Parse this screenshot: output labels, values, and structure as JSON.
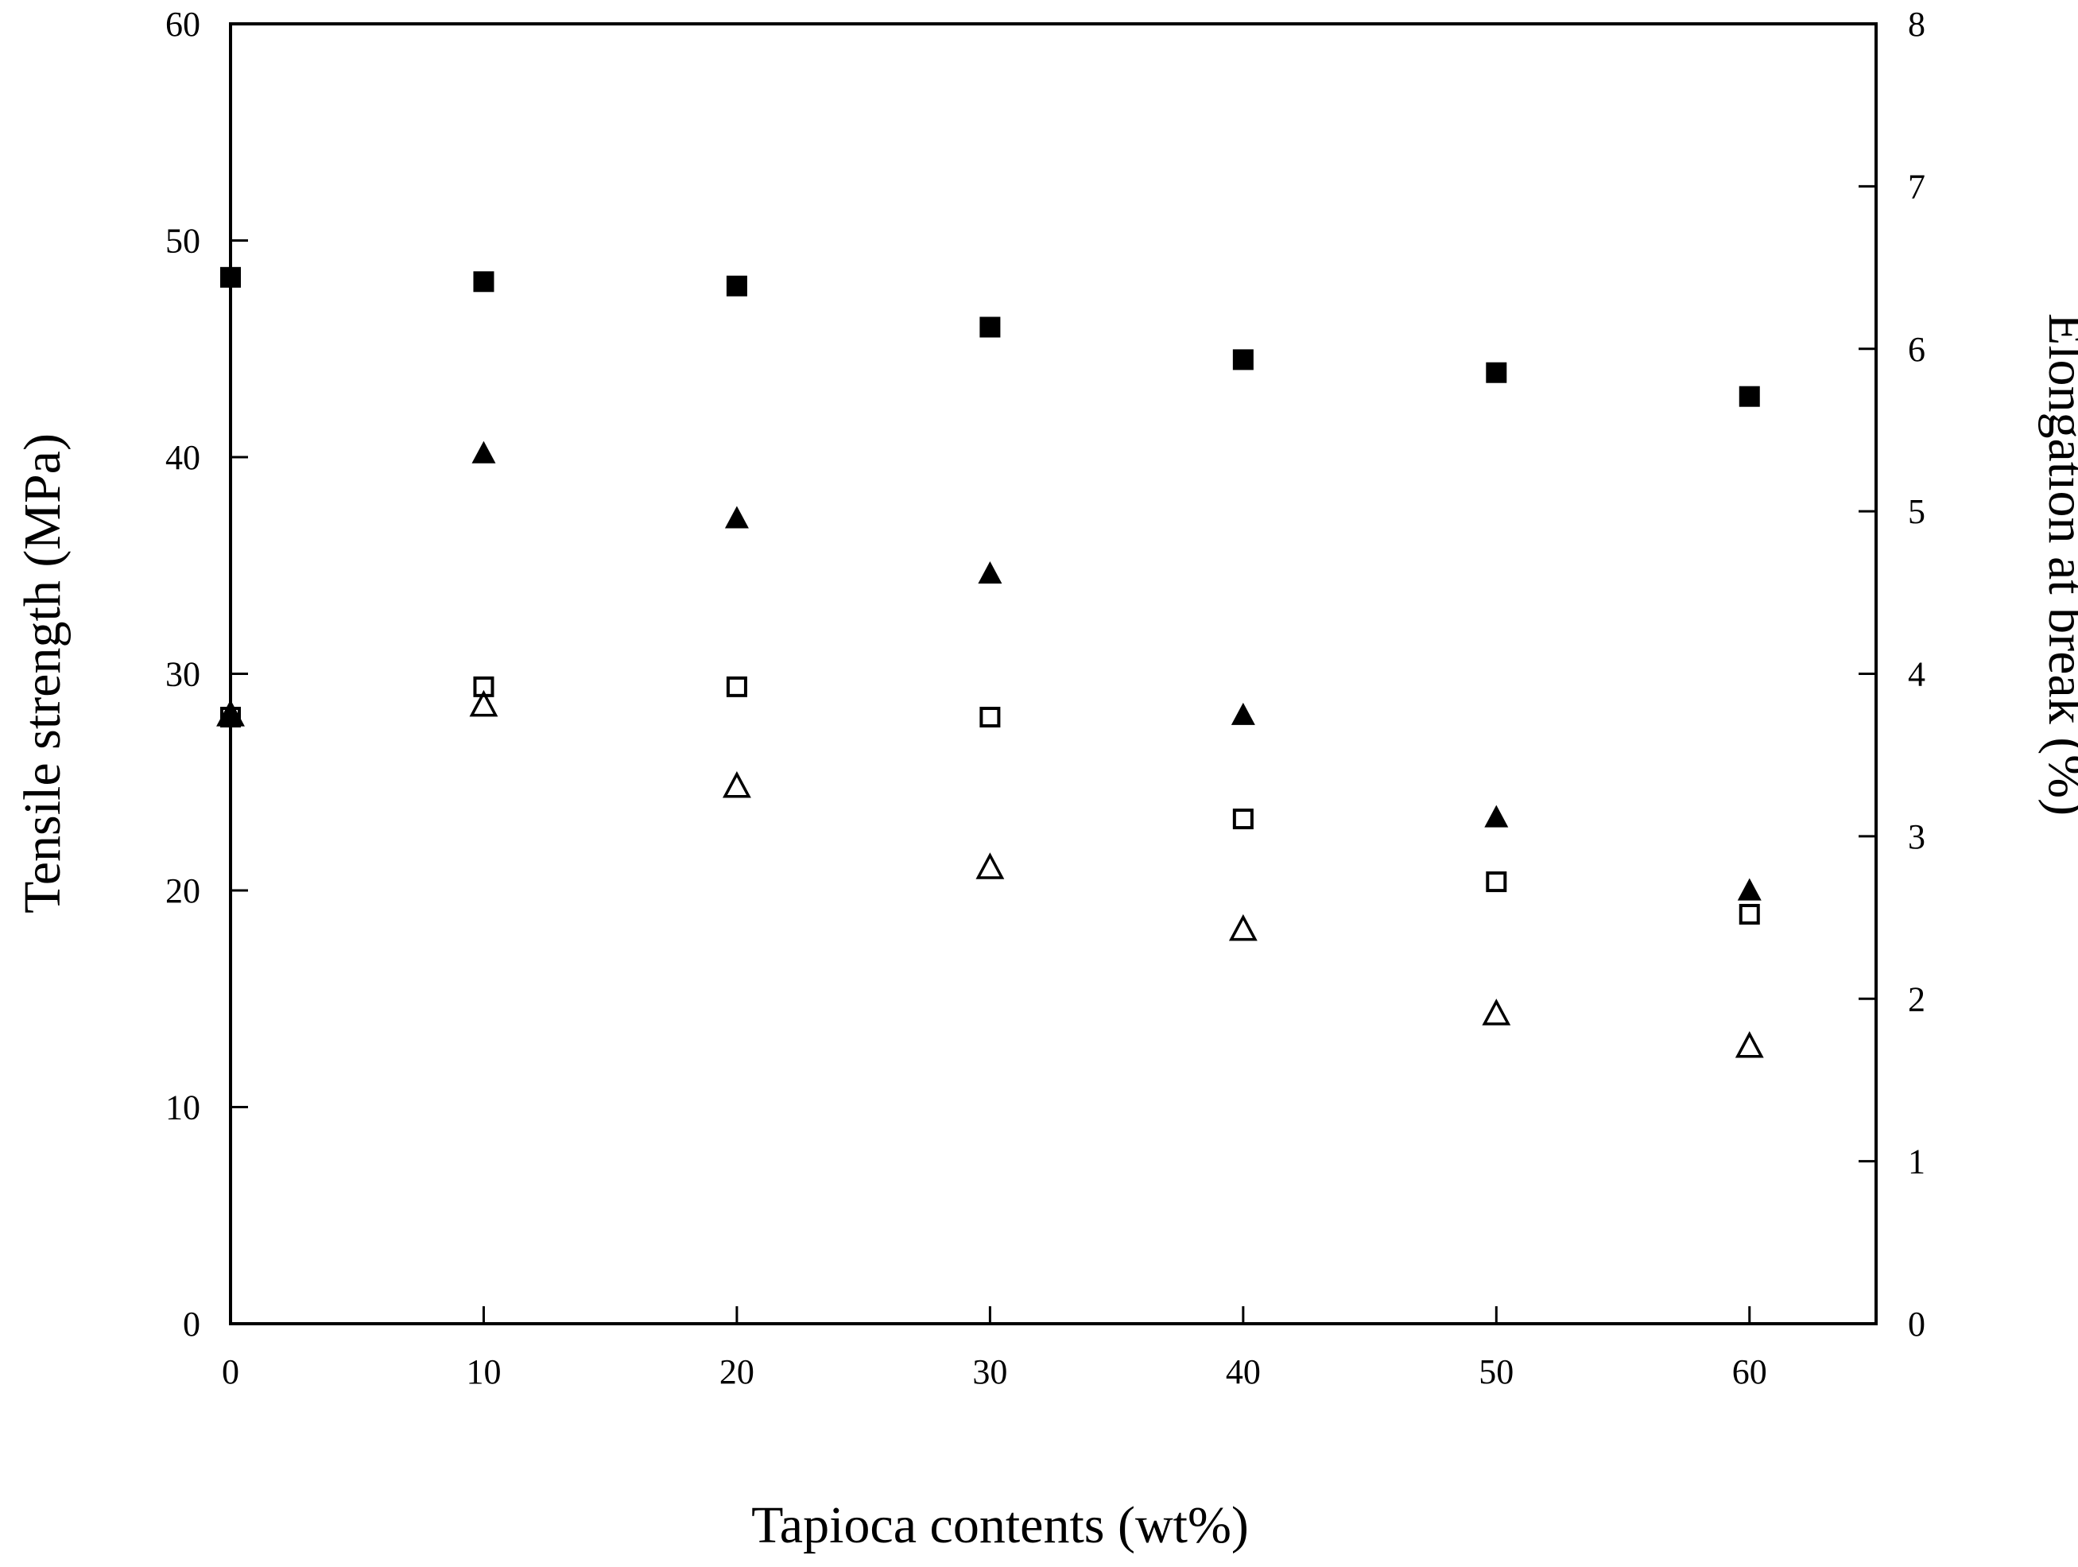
{
  "chart_data": {
    "type": "scatter",
    "xlabel": "Tapioca contents (wt%)",
    "ylabel": "Tensile strength (MPa)",
    "y2label": "Elongation at break (%)",
    "xlim": [
      0,
      65
    ],
    "ylim": [
      0,
      60
    ],
    "y2lim": [
      0,
      8
    ],
    "xticks": [
      "0",
      "10",
      "20",
      "30",
      "40",
      "50",
      "60"
    ],
    "yticks": [
      "0",
      "10",
      "20",
      "30",
      "40",
      "50",
      "60"
    ],
    "y2ticks": [
      "0",
      "1",
      "2",
      "3",
      "4",
      "5",
      "6",
      "7",
      "8"
    ],
    "grid": false,
    "series": [
      {
        "marker": "square-filled",
        "axis": "left",
        "x": [
          0,
          10,
          20,
          30,
          40,
          50,
          60
        ],
        "values": [
          48.3,
          48.1,
          47.9,
          46.0,
          44.5,
          43.9,
          42.8
        ]
      },
      {
        "marker": "square-open",
        "axis": "left",
        "x": [
          0,
          10,
          20,
          30,
          40,
          50,
          60
        ],
        "values": [
          28.0,
          29.4,
          29.4,
          28.0,
          23.3,
          20.4,
          18.9
        ]
      },
      {
        "marker": "triangle-filled",
        "axis": "right",
        "x": [
          0,
          10,
          20,
          30,
          40,
          50,
          60
        ],
        "values": [
          3.74,
          5.35,
          4.95,
          4.61,
          3.74,
          3.11,
          2.66
        ]
      },
      {
        "marker": "triangle-open",
        "axis": "right",
        "x": [
          0,
          10,
          20,
          30,
          40,
          50,
          60
        ],
        "values": [
          3.74,
          3.8,
          3.3,
          2.8,
          2.42,
          1.9,
          1.7
        ]
      }
    ]
  }
}
